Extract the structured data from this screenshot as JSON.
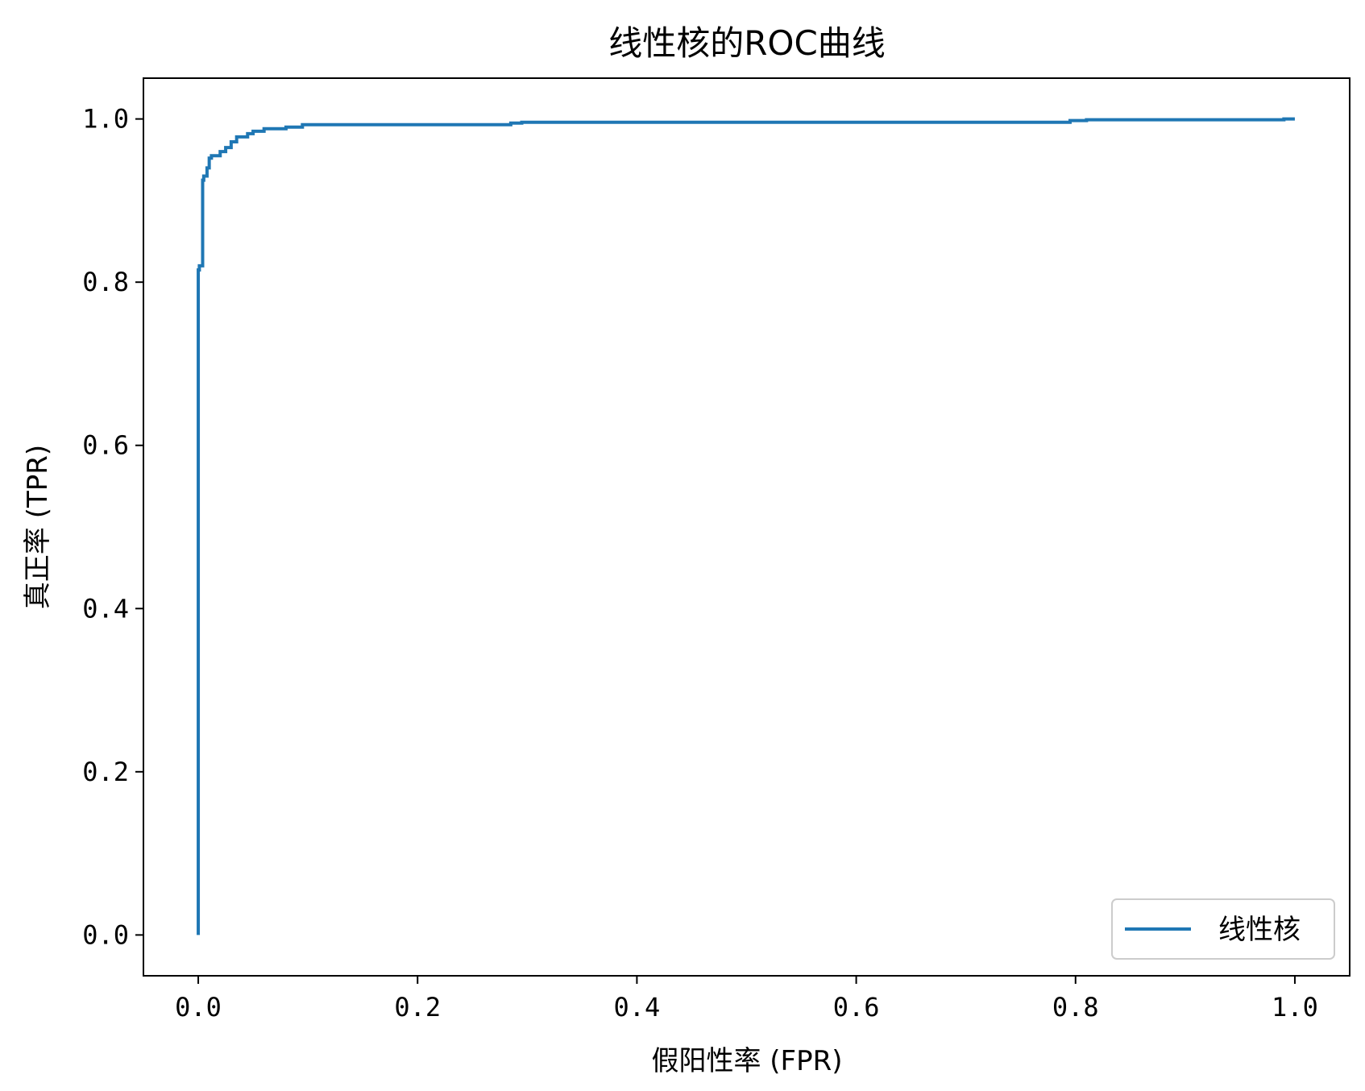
{
  "chart_data": {
    "type": "line",
    "title": "线性核的ROC曲线",
    "xlabel": "假阳性率 (FPR)",
    "ylabel": "真正率 (TPR)",
    "xlim": [
      -0.05,
      1.05
    ],
    "ylim": [
      -0.05,
      1.05
    ],
    "xticks": [
      "0.0",
      "0.2",
      "0.4",
      "0.6",
      "0.8",
      "1.0"
    ],
    "yticks": [
      "0.0",
      "0.2",
      "0.4",
      "0.6",
      "0.8",
      "1.0"
    ],
    "grid": false,
    "legend_position": "lower-right",
    "series": [
      {
        "name": "线性核",
        "color": "#1f77b4",
        "x": [
          0.0,
          0.0,
          0.001,
          0.001,
          0.004,
          0.004,
          0.005,
          0.005,
          0.008,
          0.008,
          0.01,
          0.01,
          0.012,
          0.012,
          0.02,
          0.02,
          0.025,
          0.025,
          0.03,
          0.03,
          0.035,
          0.035,
          0.045,
          0.045,
          0.05,
          0.05,
          0.06,
          0.06,
          0.08,
          0.08,
          0.095,
          0.095,
          0.285,
          0.285,
          0.295,
          0.295,
          0.795,
          0.795,
          0.81,
          0.81,
          0.99,
          0.99,
          1.0
        ],
        "y": [
          0.0,
          0.815,
          0.815,
          0.82,
          0.82,
          0.925,
          0.925,
          0.93,
          0.93,
          0.94,
          0.94,
          0.952,
          0.952,
          0.955,
          0.955,
          0.96,
          0.96,
          0.965,
          0.965,
          0.972,
          0.972,
          0.978,
          0.978,
          0.982,
          0.982,
          0.985,
          0.985,
          0.988,
          0.988,
          0.99,
          0.99,
          0.993,
          0.993,
          0.995,
          0.995,
          0.996,
          0.996,
          0.998,
          0.998,
          0.999,
          0.999,
          1.0,
          1.0
        ]
      }
    ]
  }
}
